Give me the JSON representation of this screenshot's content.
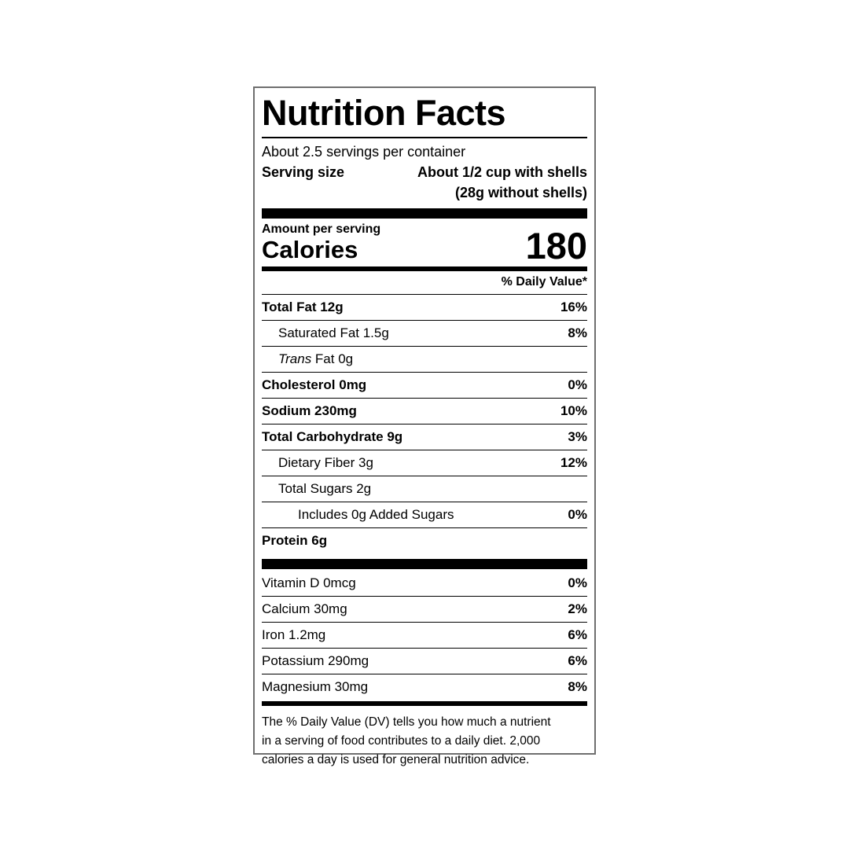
{
  "label": {
    "title": "Nutrition Facts",
    "servings_per_container": "About 2.5 servings per container",
    "serving_size": {
      "label": "Serving size",
      "value_line1": "About 1/2 cup with shells",
      "value_line2": "(28g without shells)"
    },
    "calories": {
      "header": "Amount per serving",
      "label": "Calories",
      "value": "180"
    },
    "daily_value_header": "% Daily Value*",
    "nutrient_rows": [
      {
        "name": "Total Fat 12g",
        "value": "16%",
        "bold": true,
        "indent": 0
      },
      {
        "name": "Saturated Fat 1.5g",
        "value": "8%",
        "bold": false,
        "indent": 1
      },
      {
        "name_italic_prefix": "Trans",
        "name": " Fat 0g",
        "value": "",
        "bold": false,
        "indent": 1
      },
      {
        "name": "Cholesterol 0mg",
        "value": "0%",
        "bold": true,
        "indent": 0
      },
      {
        "name": "Sodium 230mg",
        "value": "10%",
        "bold": true,
        "indent": 0
      },
      {
        "name": "Total Carbohydrate 9g",
        "value": "3%",
        "bold": true,
        "indent": 0
      },
      {
        "name": "Dietary Fiber 3g",
        "value": "12%",
        "bold": false,
        "indent": 1
      },
      {
        "name": "Total Sugars 2g",
        "value": "",
        "bold": false,
        "indent": 1
      },
      {
        "name": "Includes 0g Added Sugars",
        "value": "0%",
        "bold": false,
        "indent": 2
      },
      {
        "name": "Protein 6g",
        "value": "",
        "bold": true,
        "indent": 0
      }
    ],
    "vitamin_rows": [
      {
        "name": "Vitamin D 0mcg",
        "value": "0%",
        "bold": false,
        "indent": 0
      },
      {
        "name": "Calcium 30mg",
        "value": "2%",
        "bold": false,
        "indent": 0
      },
      {
        "name": "Iron 1.2mg",
        "value": "6%",
        "bold": false,
        "indent": 0
      },
      {
        "name": "Potassium 290mg",
        "value": "6%",
        "bold": false,
        "indent": 0
      },
      {
        "name": "Magnesium 30mg",
        "value": "8%",
        "bold": false,
        "indent": 0
      }
    ],
    "footnote_lines": [
      "The % Daily Value (DV) tells you how much a nutrient",
      "in a serving of food contributes to a daily diet. 2,000",
      "calories a day is used for general nutrition advice."
    ]
  },
  "colors": {
    "text": "#000000",
    "bar": "#000000",
    "hairline": "#000000",
    "outer_border": "#6f6f6f",
    "background": "#ffffff"
  }
}
